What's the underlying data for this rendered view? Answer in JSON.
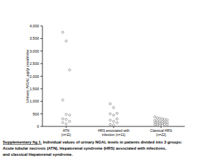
{
  "chart_data": {
    "type": "scatter",
    "y_label": "Urinary NGAL µg/g creatinine",
    "categories": [
      "ATN\n(n=11)",
      "HRS associated with\ninfection (n=11)",
      "Classical HRS\n(n=22)"
    ],
    "values": [
      [
        3750,
        3400,
        2250,
        1050,
        480,
        450,
        300,
        280,
        200,
        150,
        100
      ],
      [
        900,
        750,
        520,
        500,
        450,
        300,
        250,
        200,
        150,
        80,
        50
      ],
      [
        380,
        340,
        320,
        300,
        280,
        260,
        240,
        220,
        200,
        190,
        180,
        160,
        150,
        130,
        120,
        100,
        90,
        80,
        70,
        60,
        50,
        30
      ]
    ],
    "color": "#666666",
    "marker": "circle",
    "ylim": [
      0,
      4000
    ],
    "yticks": [
      0,
      500,
      {
        "value": 1000,
        "label": "1,000"
      },
      {
        "value": 1500,
        "label": "1,500"
      },
      {
        "value": 2000,
        "label": "2,000"
      },
      {
        "value": 2500,
        "label": "2,500"
      },
      {
        "value": 3000,
        "label": "3,000"
      },
      {
        "value": 3500,
        "label": "3,500"
      },
      {
        "value": 4000,
        "label": "4,000"
      }
    ],
    "grid": false,
    "annotations": [
      "Supplementary fig.1.",
      " Individual values of urinary NGAL levels in patients divided into 3 groups:",
      "Acute tubular necrosis (ATN), Hepatorenal syndrome (HRS) associated with infections,",
      "and classical Hepatorenal syndrome."
    ]
  }
}
